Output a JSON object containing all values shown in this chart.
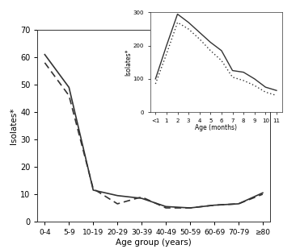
{
  "main": {
    "x_labels": [
      "0-4",
      "5-9",
      "10-19",
      "20-29",
      "30-39",
      "40-49",
      "50-59",
      "60-69",
      "70-79",
      "≥80"
    ],
    "x_positions": [
      0,
      1,
      2,
      3,
      4,
      5,
      6,
      7,
      8,
      9
    ],
    "solid_y": [
      61,
      49,
      11.5,
      9.5,
      8.5,
      5.5,
      5.0,
      6.0,
      6.5,
      10.5
    ],
    "dashed_y": [
      58,
      46,
      12.0,
      6.5,
      9.0,
      5.0,
      5.0,
      6.0,
      6.5,
      10.0
    ],
    "ylabel": "Isolates*",
    "xlabel": "Age group (years)",
    "ylim": [
      0,
      70
    ],
    "yticks": [
      0,
      10,
      20,
      30,
      40,
      50,
      60,
      70
    ]
  },
  "inset": {
    "x_labels": [
      "<1",
      "1",
      "2",
      "3",
      "4",
      "5",
      "6",
      "7",
      "8",
      "9",
      "10",
      "11"
    ],
    "x_positions": [
      0,
      1,
      2,
      3,
      4,
      5,
      6,
      7,
      8,
      9,
      10,
      11
    ],
    "solid_y": [
      100,
      200,
      295,
      270,
      240,
      210,
      185,
      125,
      120,
      100,
      75,
      65
    ],
    "dashed_y": [
      85,
      175,
      270,
      250,
      220,
      185,
      155,
      105,
      95,
      80,
      60,
      50
    ],
    "ylabel": "Isolates*",
    "xlabel": "Age (months)",
    "ylim": [
      0,
      300
    ],
    "yticks": [
      0,
      100,
      200,
      300
    ]
  },
  "line_color": "#333333",
  "background": "#ffffff"
}
